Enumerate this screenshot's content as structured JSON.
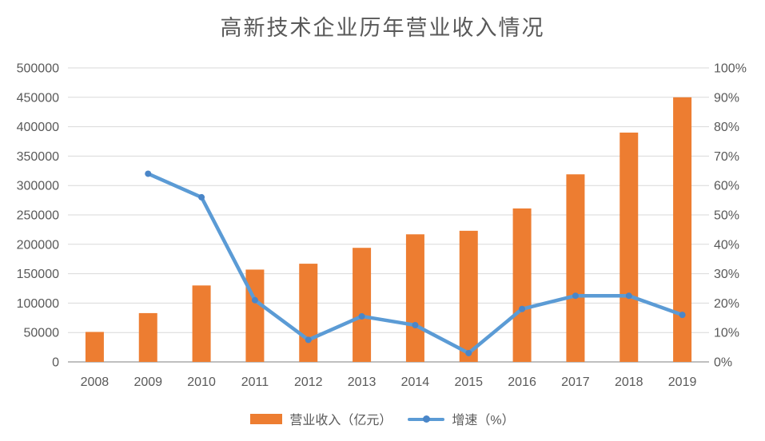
{
  "title": "高新技术企业历年营业收入情况",
  "colors": {
    "bar": "#ED7D31",
    "line": "#5B9BD5",
    "marker": "#4A86C8",
    "grid": "#D9D9D9",
    "axis": "#BFBFBF",
    "text": "#595959"
  },
  "legend": {
    "revenue_label": "营业收入（亿元）",
    "growth_label": "增速（%）"
  },
  "chart_data": {
    "type": "combo-bar-line",
    "title": "高新技术企业历年营业收入情况",
    "categories": [
      "2008",
      "2009",
      "2010",
      "2011",
      "2012",
      "2013",
      "2014",
      "2015",
      "2016",
      "2017",
      "2018",
      "2019"
    ],
    "series": [
      {
        "name": "营业收入（亿元）",
        "type": "bar",
        "axis": "left",
        "color": "#ED7D31",
        "values": [
          51000,
          83000,
          130000,
          157000,
          167000,
          194000,
          217000,
          223000,
          261000,
          319000,
          390000,
          450000
        ]
      },
      {
        "name": "增速（%）",
        "type": "line",
        "axis": "right",
        "color": "#5B9BD5",
        "values": [
          null,
          64,
          56,
          21,
          7.5,
          15.5,
          12.5,
          3,
          18,
          22.5,
          22.5,
          16
        ]
      }
    ],
    "left_axis": {
      "min": 0,
      "max": 500000,
      "step": 50000,
      "ticks": [
        "0",
        "50000",
        "100000",
        "150000",
        "200000",
        "250000",
        "300000",
        "350000",
        "400000",
        "450000",
        "500000"
      ]
    },
    "right_axis": {
      "min": 0,
      "max": 100,
      "step": 10,
      "ticks": [
        "0%",
        "10%",
        "20%",
        "30%",
        "40%",
        "50%",
        "60%",
        "70%",
        "80%",
        "90%",
        "100%"
      ]
    },
    "grid": true,
    "legend_position": "bottom"
  }
}
